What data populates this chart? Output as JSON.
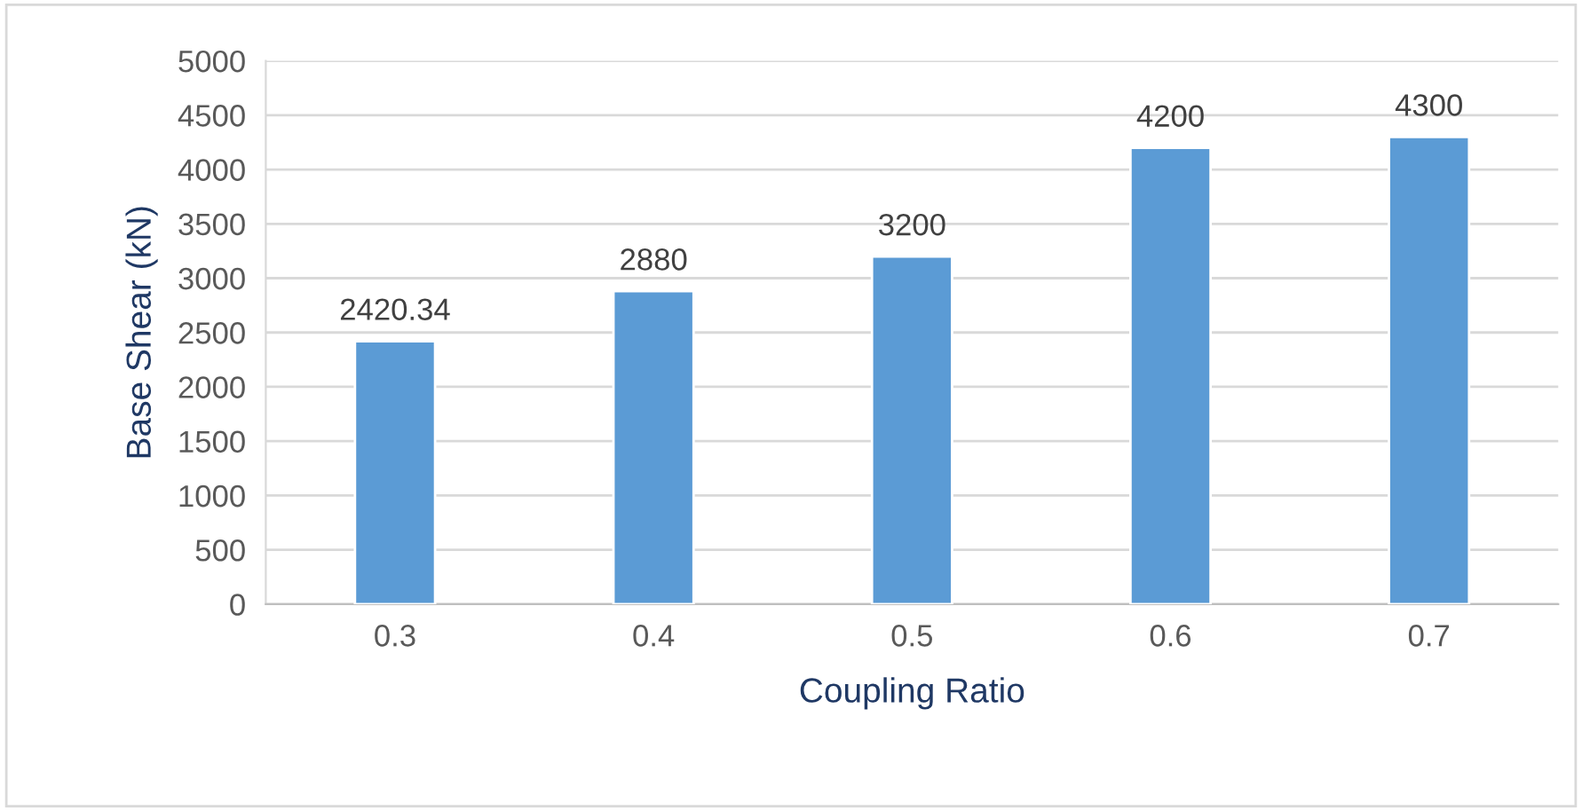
{
  "chart_data": {
    "type": "bar",
    "xlabel": "Coupling Ratio",
    "ylabel": "Base Shear (kN)",
    "categories": [
      "0.3",
      "0.4",
      "0.5",
      "0.6",
      "0.7"
    ],
    "values": [
      2420.34,
      2880,
      3200,
      4200,
      4300
    ],
    "color": "#5b9bd5",
    "ylim": [
      0,
      5000
    ],
    "yticks": [
      0,
      500,
      1000,
      1500,
      2000,
      2500,
      3000,
      3500,
      4000,
      4500,
      5000
    ],
    "grid": "y",
    "data_labels": true
  }
}
